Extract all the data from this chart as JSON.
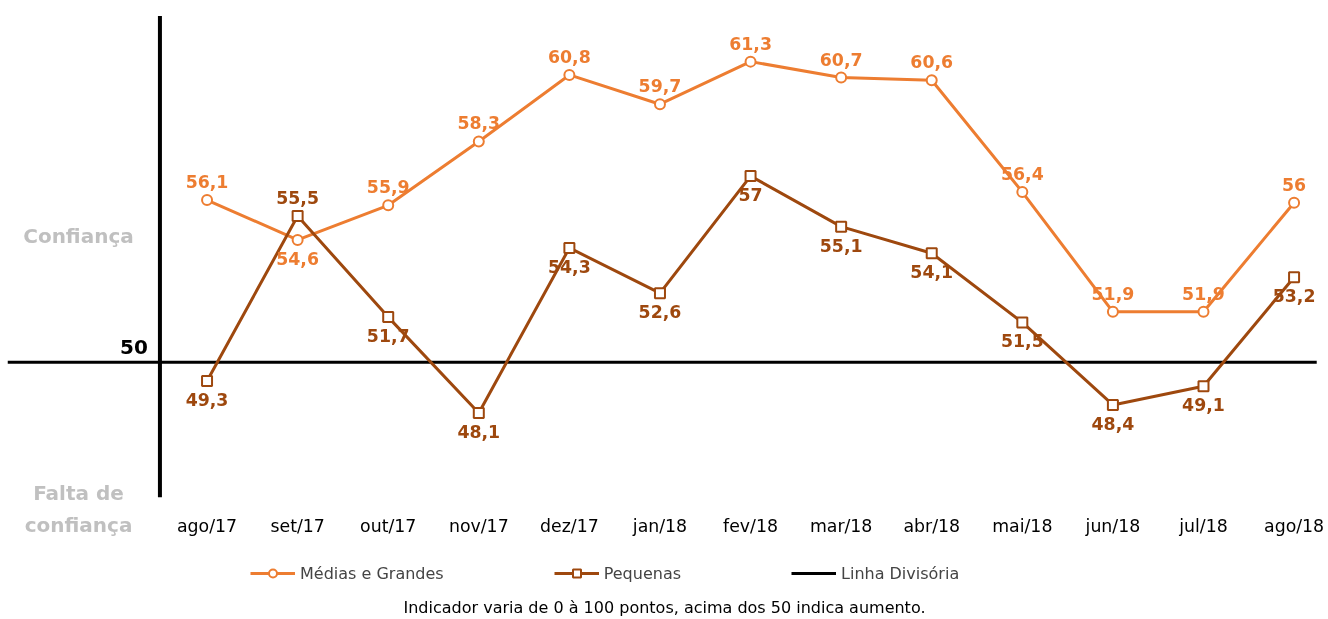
{
  "chart_data": {
    "type": "line",
    "categories": [
      "ago/17",
      "set/17",
      "out/17",
      "nov/17",
      "dez/17",
      "jan/18",
      "fev/18",
      "mar/18",
      "abr/18",
      "mai/18",
      "jun/18",
      "jul/18",
      "ago/18"
    ],
    "series": [
      {
        "name": "Médias e Grandes",
        "color": "#ed7d31",
        "marker": "circle",
        "values": [
          56.1,
          54.6,
          55.9,
          58.3,
          60.8,
          59.7,
          61.3,
          60.7,
          60.6,
          56.4,
          51.9,
          51.9,
          56
        ],
        "value_labels": [
          "56,1",
          "54,6",
          "55,9",
          "58,3",
          "60,8",
          "59,7",
          "61,3",
          "60,7",
          "60,6",
          "56,4",
          "51,9",
          "51,9",
          "56"
        ]
      },
      {
        "name": "Pequenas",
        "color": "#9e480e",
        "marker": "square",
        "values": [
          49.3,
          55.5,
          51.7,
          48.1,
          54.3,
          52.6,
          57,
          55.1,
          54.1,
          51.5,
          48.4,
          49.1,
          53.2
        ],
        "value_labels": [
          "49,3",
          "55,5",
          "51,7",
          "48,1",
          "54,3",
          "52,6",
          "57",
          "55,1",
          "54,1",
          "51,5",
          "48,4",
          "49,1",
          "53,2"
        ]
      }
    ],
    "ref_lines": [
      {
        "axis": "y",
        "value": 50,
        "label": "Linha Divisória",
        "color": "#000000"
      }
    ],
    "grid": false,
    "legend": "bottom",
    "line_style": "solid",
    "annotations": [
      {
        "text": "50",
        "y": 50
      },
      "Confiança",
      "Falta de confiança",
      "Indicador varia de 0 à 100 pontos, acima dos 50 indica aumento."
    ]
  }
}
